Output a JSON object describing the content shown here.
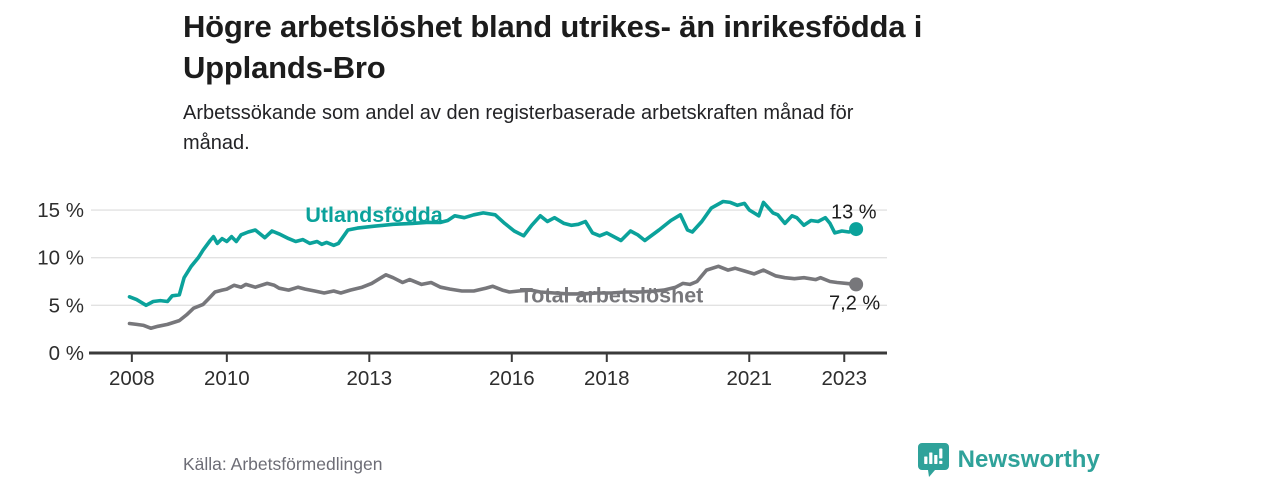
{
  "header": {
    "title_lines": [
      "Högre arbetslöshet bland utrikes- än inrikesfödda i",
      "Upplands-Bro"
    ],
    "subtitle_lines": [
      "Arbetssökande som andel av den registerbaserade arbetskraften månad för",
      "månad."
    ]
  },
  "footer": {
    "source": "Källa: Arbetsförmedlingen",
    "brand": "Newsworthy",
    "brand_icon": "bar-chart-speech-bubble-icon"
  },
  "colors": {
    "teal": "#0ba29b",
    "gray": "#77777b",
    "axis": "#3a3a3a",
    "grid": "#e2e2e2",
    "text_dark": "#1c1c1c",
    "text_gray": "#6d6d76",
    "brand": "#2fa29a"
  },
  "chart_data": {
    "type": "line",
    "unit": "percent of registered labour force",
    "grid": "horizontal-only",
    "legend_position": "inline-labels",
    "xlim": [
      2007.14,
      2023.9
    ],
    "ylim": [
      0,
      16
    ],
    "x_ticks": {
      "values": [
        2008,
        2010,
        2013,
        2016,
        2018,
        2021,
        2023
      ],
      "labels": [
        "2008",
        "2010",
        "2013",
        "2016",
        "2018",
        "2021",
        "2023"
      ]
    },
    "y_ticks": {
      "values": [
        0,
        5,
        10,
        15
      ],
      "labels": [
        "0 %",
        "5 %",
        "10 %",
        "15 %"
      ]
    },
    "series": [
      {
        "name": "Utlandsfödda",
        "slug": "utlandsfodda",
        "color_key": "teal",
        "name_label": {
          "x": 2013.1,
          "y": 14.5,
          "anchor": "middle"
        },
        "end_label": {
          "text": "13 %",
          "x": 2022.72,
          "y": 14.1,
          "anchor": "start"
        },
        "end_dot": true,
        "points": [
          [
            2007.95,
            5.9
          ],
          [
            2008.1,
            5.6
          ],
          [
            2008.3,
            5.0
          ],
          [
            2008.45,
            5.4
          ],
          [
            2008.6,
            5.5
          ],
          [
            2008.75,
            5.4
          ],
          [
            2008.85,
            6.0
          ],
          [
            2009.0,
            6.1
          ],
          [
            2009.1,
            7.9
          ],
          [
            2009.25,
            9.1
          ],
          [
            2009.4,
            10.0
          ],
          [
            2009.5,
            10.8
          ],
          [
            2009.65,
            11.8
          ],
          [
            2009.72,
            12.2
          ],
          [
            2009.8,
            11.5
          ],
          [
            2009.9,
            12.0
          ],
          [
            2010.0,
            11.7
          ],
          [
            2010.1,
            12.2
          ],
          [
            2010.2,
            11.7
          ],
          [
            2010.3,
            12.4
          ],
          [
            2010.45,
            12.7
          ],
          [
            2010.6,
            12.9
          ],
          [
            2010.8,
            12.1
          ],
          [
            2010.95,
            12.8
          ],
          [
            2011.1,
            12.5
          ],
          [
            2011.3,
            12.0
          ],
          [
            2011.45,
            11.7
          ],
          [
            2011.6,
            11.9
          ],
          [
            2011.75,
            11.5
          ],
          [
            2011.9,
            11.7
          ],
          [
            2012.0,
            11.4
          ],
          [
            2012.1,
            11.6
          ],
          [
            2012.25,
            11.3
          ],
          [
            2012.35,
            11.5
          ],
          [
            2012.45,
            12.2
          ],
          [
            2012.55,
            12.9
          ],
          [
            2012.75,
            13.1
          ],
          [
            2013.1,
            13.3
          ],
          [
            2013.5,
            13.5
          ],
          [
            2013.9,
            13.6
          ],
          [
            2014.2,
            13.7
          ],
          [
            2014.5,
            13.7
          ],
          [
            2014.65,
            13.9
          ],
          [
            2014.8,
            14.4
          ],
          [
            2015.0,
            14.2
          ],
          [
            2015.2,
            14.5
          ],
          [
            2015.4,
            14.7
          ],
          [
            2015.65,
            14.5
          ],
          [
            2015.85,
            13.6
          ],
          [
            2016.05,
            12.8
          ],
          [
            2016.25,
            12.3
          ],
          [
            2016.42,
            13.4
          ],
          [
            2016.6,
            14.4
          ],
          [
            2016.75,
            13.8
          ],
          [
            2016.9,
            14.2
          ],
          [
            2017.1,
            13.6
          ],
          [
            2017.25,
            13.4
          ],
          [
            2017.4,
            13.5
          ],
          [
            2017.55,
            13.8
          ],
          [
            2017.7,
            12.6
          ],
          [
            2017.85,
            12.3
          ],
          [
            2018.0,
            12.6
          ],
          [
            2018.3,
            11.8
          ],
          [
            2018.5,
            12.8
          ],
          [
            2018.65,
            12.4
          ],
          [
            2018.8,
            11.8
          ],
          [
            2019.1,
            12.9
          ],
          [
            2019.35,
            13.9
          ],
          [
            2019.55,
            14.5
          ],
          [
            2019.7,
            12.9
          ],
          [
            2019.8,
            12.7
          ],
          [
            2020.0,
            13.8
          ],
          [
            2020.2,
            15.2
          ],
          [
            2020.45,
            15.9
          ],
          [
            2020.6,
            15.8
          ],
          [
            2020.75,
            15.5
          ],
          [
            2020.9,
            15.7
          ],
          [
            2021.0,
            15.0
          ],
          [
            2021.1,
            14.7
          ],
          [
            2021.2,
            14.4
          ],
          [
            2021.3,
            15.8
          ],
          [
            2021.5,
            14.7
          ],
          [
            2021.6,
            14.5
          ],
          [
            2021.75,
            13.6
          ],
          [
            2021.9,
            14.4
          ],
          [
            2022.0,
            14.2
          ],
          [
            2022.15,
            13.4
          ],
          [
            2022.3,
            13.9
          ],
          [
            2022.45,
            13.8
          ],
          [
            2022.6,
            14.2
          ],
          [
            2022.7,
            13.6
          ],
          [
            2022.8,
            12.6
          ],
          [
            2022.95,
            12.8
          ],
          [
            2023.1,
            12.7
          ],
          [
            2023.25,
            13.0
          ]
        ]
      },
      {
        "name": "Total arbetslöshet",
        "slug": "total-arbetsloshet",
        "color_key": "gray",
        "name_label": {
          "x": 2018.1,
          "y": 6.05,
          "anchor": "middle"
        },
        "end_label": {
          "text": "7,2 %",
          "x": 2022.68,
          "y": 4.55,
          "anchor": "start"
        },
        "end_dot": true,
        "points": [
          [
            2007.95,
            3.1
          ],
          [
            2008.1,
            3.0
          ],
          [
            2008.25,
            2.9
          ],
          [
            2008.4,
            2.6
          ],
          [
            2008.55,
            2.8
          ],
          [
            2008.75,
            3.0
          ],
          [
            2009.0,
            3.4
          ],
          [
            2009.15,
            4.0
          ],
          [
            2009.3,
            4.7
          ],
          [
            2009.5,
            5.1
          ],
          [
            2009.6,
            5.6
          ],
          [
            2009.75,
            6.4
          ],
          [
            2009.9,
            6.6
          ],
          [
            2010.0,
            6.7
          ],
          [
            2010.15,
            7.1
          ],
          [
            2010.3,
            6.9
          ],
          [
            2010.4,
            7.2
          ],
          [
            2010.6,
            6.9
          ],
          [
            2010.85,
            7.3
          ],
          [
            2011.0,
            7.1
          ],
          [
            2011.1,
            6.8
          ],
          [
            2011.3,
            6.6
          ],
          [
            2011.5,
            6.9
          ],
          [
            2011.65,
            6.7
          ],
          [
            2011.85,
            6.5
          ],
          [
            2012.05,
            6.3
          ],
          [
            2012.25,
            6.5
          ],
          [
            2012.4,
            6.3
          ],
          [
            2012.6,
            6.6
          ],
          [
            2012.85,
            6.9
          ],
          [
            2013.05,
            7.3
          ],
          [
            2013.35,
            8.2
          ],
          [
            2013.5,
            7.9
          ],
          [
            2013.7,
            7.4
          ],
          [
            2013.85,
            7.7
          ],
          [
            2014.1,
            7.2
          ],
          [
            2014.3,
            7.4
          ],
          [
            2014.5,
            6.9
          ],
          [
            2014.7,
            6.7
          ],
          [
            2014.95,
            6.5
          ],
          [
            2015.2,
            6.5
          ],
          [
            2015.45,
            6.8
          ],
          [
            2015.6,
            7.0
          ],
          [
            2015.8,
            6.6
          ],
          [
            2015.95,
            6.4
          ],
          [
            2016.15,
            6.5
          ],
          [
            2016.4,
            6.6
          ],
          [
            2016.6,
            6.4
          ],
          [
            2016.9,
            6.3
          ],
          [
            2017.2,
            6.2
          ],
          [
            2017.5,
            6.2
          ],
          [
            2017.8,
            6.3
          ],
          [
            2018.1,
            6.3
          ],
          [
            2018.4,
            6.4
          ],
          [
            2018.7,
            6.4
          ],
          [
            2019.0,
            6.5
          ],
          [
            2019.2,
            6.6
          ],
          [
            2019.45,
            6.9
          ],
          [
            2019.6,
            7.3
          ],
          [
            2019.75,
            7.2
          ],
          [
            2019.9,
            7.5
          ],
          [
            2020.1,
            8.7
          ],
          [
            2020.35,
            9.1
          ],
          [
            2020.55,
            8.7
          ],
          [
            2020.7,
            8.9
          ],
          [
            2020.9,
            8.6
          ],
          [
            2021.1,
            8.3
          ],
          [
            2021.3,
            8.7
          ],
          [
            2021.55,
            8.1
          ],
          [
            2021.75,
            7.9
          ],
          [
            2021.95,
            7.8
          ],
          [
            2022.15,
            7.9
          ],
          [
            2022.4,
            7.7
          ],
          [
            2022.5,
            7.9
          ],
          [
            2022.7,
            7.5
          ],
          [
            2022.85,
            7.4
          ],
          [
            2023.05,
            7.3
          ],
          [
            2023.25,
            7.2
          ]
        ]
      }
    ]
  }
}
